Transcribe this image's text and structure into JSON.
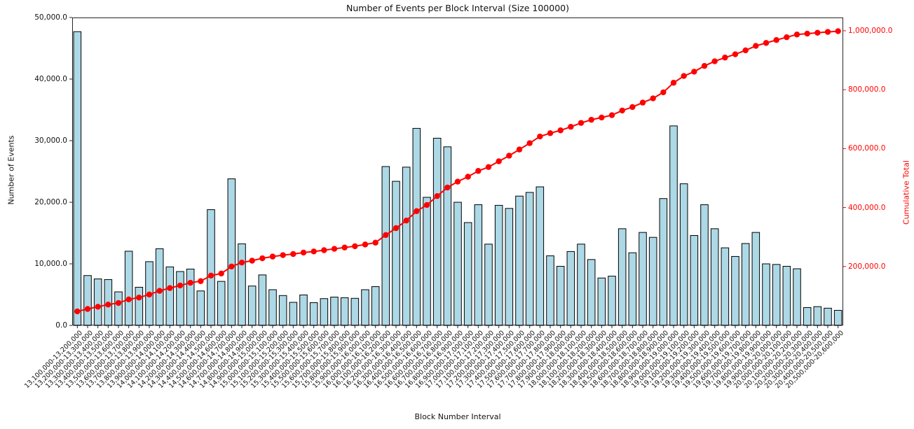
{
  "figure": {
    "title": "Number of Events per Block Interval (Size 100000)",
    "xlabel": "Block Number Interval",
    "ylabel_left": "Number of Events",
    "ylabel_right": "Cumulative Total"
  },
  "colors": {
    "background": "#ffffff",
    "bar_fill": "#add8e6",
    "bar_edge": "#000000",
    "line": "#ff0000",
    "marker": "#ff0000",
    "right_axis_text": "#ff0000",
    "left_axis_text": "#111111",
    "spine": "#262626"
  },
  "chart_data": {
    "type": "bar",
    "title": "Number of Events per Block Interval (Size 100000)",
    "xlabel": "Block Number Interval",
    "ylabel_left": "Number of Events",
    "ylabel_right": "Cumulative Total",
    "grid": false,
    "legend": "none",
    "bar_color": "lightblue",
    "line_color": "red",
    "ylim_left": [
      0,
      50000
    ],
    "ylim_right": [
      0,
      1045000
    ],
    "yticks_left": [
      {
        "v": 0,
        "label": "0.0"
      },
      {
        "v": 10000,
        "label": "10,000.0"
      },
      {
        "v": 20000,
        "label": "20,000.0"
      },
      {
        "v": 30000,
        "label": "30,000.0"
      },
      {
        "v": 40000,
        "label": "40,000.0"
      },
      {
        "v": 50000,
        "label": "50,000.0"
      }
    ],
    "yticks_right": [
      {
        "v": 200000,
        "label": "200,000.0"
      },
      {
        "v": 400000,
        "label": "400,000.0"
      },
      {
        "v": 600000,
        "label": "600,000.0"
      },
      {
        "v": 800000,
        "label": "800,000.0"
      },
      {
        "v": 1000000,
        "label": "1,000,000.0"
      }
    ],
    "categories": [
      "13,100,000-13,200,000",
      "13,200,000-13,300,000",
      "13,300,000-13,400,000",
      "13,400,000-13,500,000",
      "13,500,000-13,600,000",
      "13,600,000-13,700,000",
      "13,700,000-13,800,000",
      "13,800,000-13,900,000",
      "13,900,000-14,000,000",
      "14,000,000-14,100,000",
      "14,100,000-14,200,000",
      "14,200,000-14,300,000",
      "14,300,000-14,400,000",
      "14,400,000-14,500,000",
      "14,500,000-14,600,000",
      "14,600,000-14,700,000",
      "14,700,000-14,800,000",
      "14,800,000-14,900,000",
      "14,900,000-15,000,000",
      "15,000,000-15,100,000",
      "15,100,000-15,200,000",
      "15,200,000-15,300,000",
      "15,300,000-15,400,000",
      "15,400,000-15,500,000",
      "15,500,000-15,600,000",
      "15,600,000-15,700,000",
      "15,700,000-15,800,000",
      "15,800,000-15,900,000",
      "15,900,000-16,000,000",
      "16,000,000-16,100,000",
      "16,100,000-16,200,000",
      "16,200,000-16,300,000",
      "16,300,000-16,400,000",
      "16,400,000-16,500,000",
      "16,500,000-16,600,000",
      "16,600,000-16,700,000",
      "16,700,000-16,800,000",
      "16,800,000-16,900,000",
      "16,900,000-17,000,000",
      "17,000,000-17,100,000",
      "17,100,000-17,200,000",
      "17,200,000-17,300,000",
      "17,300,000-17,400,000",
      "17,400,000-17,500,000",
      "17,500,000-17,600,000",
      "17,600,000-17,700,000",
      "17,700,000-17,800,000",
      "17,800,000-17,900,000",
      "17,900,000-18,000,000",
      "18,000,000-18,100,000",
      "18,100,000-18,200,000",
      "18,200,000-18,300,000",
      "18,300,000-18,400,000",
      "18,400,000-18,500,000",
      "18,500,000-18,600,000",
      "18,600,000-18,700,000",
      "18,700,000-18,800,000",
      "18,800,000-18,900,000",
      "18,900,000-19,000,000",
      "19,000,000-19,100,000",
      "19,100,000-19,200,000",
      "19,200,000-19,300,000",
      "19,300,000-19,400,000",
      "19,400,000-19,500,000",
      "19,500,000-19,600,000",
      "19,600,000-19,700,000",
      "19,700,000-19,800,000",
      "19,800,000-19,900,000",
      "19,900,000-20,000,000",
      "20,000,000-20,100,000",
      "20,100,000-20,200,000",
      "20,200,000-20,300,000",
      "20,300,000-20,400,000",
      "20,400,000-20,500,000",
      "20,500,000-20,600,000"
    ],
    "series": [
      {
        "name": "Number of Events",
        "type": "bar",
        "axis": "left",
        "values": [
          47700,
          8100,
          7550,
          7450,
          5450,
          12050,
          6200,
          10350,
          12450,
          9500,
          8750,
          9150,
          5600,
          18800,
          7150,
          23800,
          13250,
          6400,
          8200,
          5800,
          4850,
          3750,
          4950,
          3700,
          4350,
          4600,
          4500,
          4400,
          5800,
          6300,
          25800,
          23400,
          25700,
          32000,
          20800,
          30400,
          29000,
          20000,
          16700,
          19600,
          13200,
          19500,
          19000,
          21000,
          21600,
          22500,
          11300,
          9600,
          12000,
          13200,
          10700,
          7700,
          8000,
          15700,
          11800,
          15100,
          14300,
          20600,
          32400,
          23000,
          14600,
          19600,
          15700,
          12600,
          11200,
          13300,
          15100,
          10000,
          9900,
          9600,
          9200,
          2900,
          3050,
          2800,
          2450
        ]
      },
      {
        "name": "Cumulative Total",
        "type": "line",
        "axis": "right",
        "values": [
          47700,
          55800,
          63350,
          70800,
          76250,
          88300,
          94500,
          104850,
          117300,
          126800,
          135550,
          144700,
          150300,
          169100,
          176250,
          200050,
          213300,
          219700,
          227900,
          233700,
          238550,
          242300,
          247250,
          250950,
          255300,
          259900,
          264400,
          268800,
          274600,
          280900,
          306700,
          330100,
          355800,
          387800,
          408600,
          439000,
          468000,
          488000,
          504700,
          524300,
          537500,
          557000,
          576000,
          597000,
          618600,
          641100,
          652400,
          662000,
          674000,
          687200,
          697900,
          705600,
          713600,
          729300,
          741100,
          756200,
          770500,
          791100,
          823500,
          846500,
          861100,
          880700,
          896400,
          909000,
          920200,
          933500,
          948600,
          958600,
          968500,
          978100,
          987300,
          990200,
          993250,
          996050,
          998500
        ]
      }
    ]
  }
}
